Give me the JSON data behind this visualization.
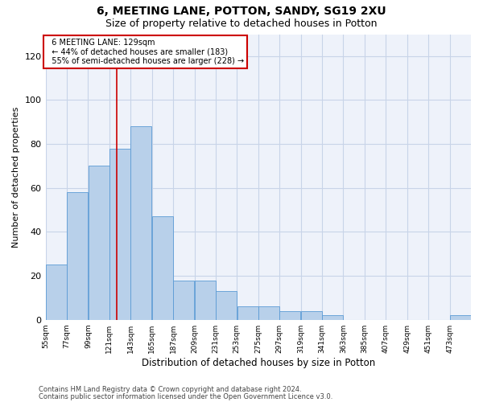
{
  "title1": "6, MEETING LANE, POTTON, SANDY, SG19 2XU",
  "title2": "Size of property relative to detached houses in Potton",
  "xlabel": "Distribution of detached houses by size in Potton",
  "ylabel": "Number of detached properties",
  "footer1": "Contains HM Land Registry data © Crown copyright and database right 2024.",
  "footer2": "Contains public sector information licensed under the Open Government Licence v3.0.",
  "annotation_title": "6 MEETING LANE: 129sqm",
  "annotation_line1": "← 44% of detached houses are smaller (183)",
  "annotation_line2": "55% of semi-detached houses are larger (228) →",
  "property_size": 129,
  "bins": [
    55,
    77,
    99,
    121,
    143,
    165,
    187,
    209,
    231,
    253,
    275,
    297,
    319,
    341,
    363,
    385,
    407,
    429,
    451,
    473,
    495
  ],
  "bar_heights": [
    25,
    58,
    70,
    78,
    88,
    47,
    18,
    18,
    13,
    6,
    6,
    4,
    4,
    2,
    0,
    0,
    0,
    0,
    0,
    2
  ],
  "bar_color": "#b8d0ea",
  "bar_edge_color": "#5b9bd5",
  "grid_color": "#c8d4e8",
  "vline_color": "#cc0000",
  "bg_color": "#eef2fa",
  "ylim": [
    0,
    130
  ],
  "yticks": [
    0,
    20,
    40,
    60,
    80,
    100,
    120
  ],
  "annotation_box_color": "#cc0000",
  "title_fontsize": 10,
  "subtitle_fontsize": 9
}
